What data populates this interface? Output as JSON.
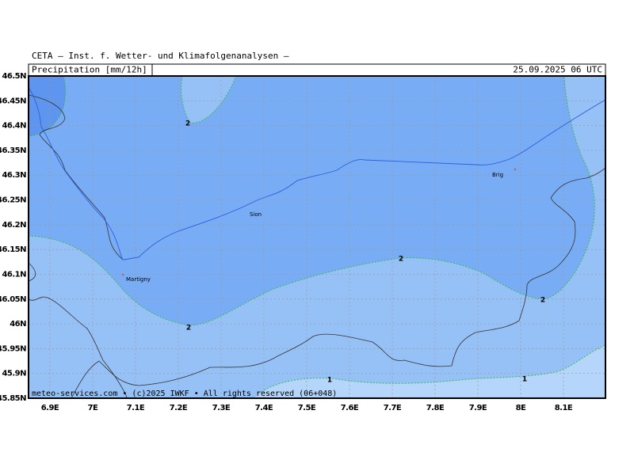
{
  "header": {
    "source": "CETA — Inst. f. Wetter- und Klimafolgenanalysen —",
    "title": "Precipitation [mm/12h]",
    "valid_time": "25.09.2025 06 UTC"
  },
  "lat_labels": [
    "46.5N",
    "46.45N",
    "46.4N",
    "46.35N",
    "46.3N",
    "46.25N",
    "46.2N",
    "46.15N",
    "46.1N",
    "46.05N",
    "46N",
    "45.95N",
    "45.9N",
    "45.85N"
  ],
  "lon_labels": [
    "6.9E",
    "7E",
    "7.1E",
    "7.2E",
    "7.3E",
    "7.4E",
    "7.5E",
    "7.6E",
    "7.7E",
    "7.8E",
    "7.9E",
    "8E",
    "8.1E"
  ],
  "places": [
    "Sion",
    "Martigny",
    "Brig"
  ],
  "contour_labels": [
    "2",
    "2",
    "2",
    "2",
    "1",
    "1"
  ],
  "footer": "meteo-services.com • (c)2025 IWKF • All rights reserved (06+048)"
}
